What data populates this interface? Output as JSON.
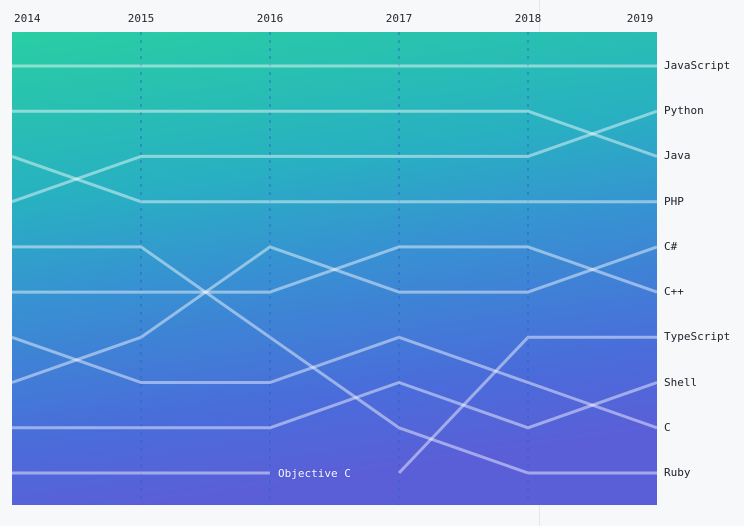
{
  "chart_data": {
    "type": "line",
    "subtype": "bump-rank-chart",
    "title": "",
    "xlabel": "",
    "ylabel": "",
    "x": [
      2014,
      2015,
      2016,
      2017,
      2018,
      2019
    ],
    "x_tick_labels": [
      "2014",
      "2015",
      "2016",
      "2017",
      "2018",
      "2019"
    ],
    "y_axis": "language popularity rank (1 = top, 10 = bottom, inverted axis)",
    "ylim": [
      1,
      10
    ],
    "grid": "dashed vertical year lines for 2015-2018",
    "legend_position": "labels at right edge, ordered by 2019 rank",
    "series": [
      {
        "name": "JavaScript",
        "ranks": [
          1,
          1,
          1,
          1,
          1,
          1
        ]
      },
      {
        "name": "Python",
        "ranks": [
          4,
          3,
          3,
          3,
          3,
          2
        ]
      },
      {
        "name": "Java",
        "ranks": [
          2,
          2,
          2,
          2,
          2,
          3
        ]
      },
      {
        "name": "PHP",
        "ranks": [
          3,
          4,
          4,
          4,
          4,
          4
        ]
      },
      {
        "name": "C#",
        "ranks": [
          8,
          7,
          5,
          6,
          6,
          5
        ]
      },
      {
        "name": "C++",
        "ranks": [
          6,
          6,
          6,
          5,
          5,
          6
        ]
      },
      {
        "name": "TypeScript",
        "ranks": [
          null,
          null,
          null,
          10,
          7,
          7
        ]
      },
      {
        "name": "Shell",
        "ranks": [
          9,
          9,
          9,
          8,
          9,
          8
        ]
      },
      {
        "name": "C",
        "ranks": [
          7,
          8,
          8,
          7,
          8,
          9
        ]
      },
      {
        "name": "Ruby",
        "ranks": [
          5,
          5,
          7,
          9,
          10,
          10
        ]
      },
      {
        "name": "Objective C",
        "ranks": [
          10,
          10,
          10,
          null,
          null,
          null
        ],
        "labeled_inline": true
      }
    ],
    "annotations": [
      {
        "text": "Objective C",
        "year": 2016,
        "rank": 10,
        "placement": "right-of-line-end"
      }
    ],
    "colors": {
      "gradient_stops": [
        "#29CEA3",
        "#28B0C2",
        "#3791D2",
        "#4A6CDA",
        "#5A5FD8"
      ],
      "line": "#ffffff",
      "line_opacity": 0.46,
      "year_gridline": "#2d62c8",
      "axis_text": "#24292f",
      "page_background": "#f6f8fa",
      "annotation_text": "#ffffff"
    }
  }
}
